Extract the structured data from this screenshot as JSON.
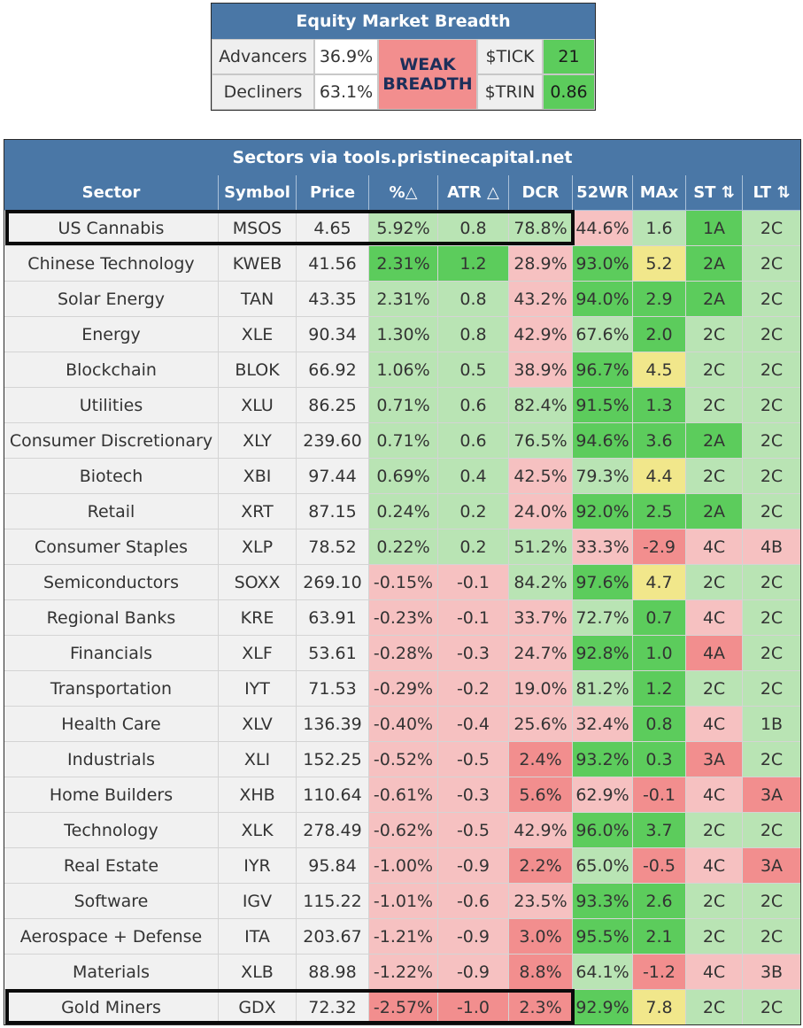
{
  "breadth": {
    "title": "Equity Market Breadth",
    "advancers_label": "Advancers",
    "advancers_value": "36.9%",
    "decliners_label": "Decliners",
    "decliners_value": "63.1%",
    "status_line1": "WEAK",
    "status_line2": "BREADTH",
    "tick_label": "$TICK",
    "tick_value": "21",
    "trin_label": "$TRIN",
    "trin_value": "0.86"
  },
  "sectors": {
    "title": "Sectors via tools.pristinecapital.net",
    "columns": [
      "Sector",
      "Symbol",
      "Price",
      "%△",
      "ATR △",
      "DCR",
      "52WR",
      "MAx",
      "ST ⇅",
      "LT ⇅"
    ],
    "rows": [
      {
        "cells": [
          "US Cannabis",
          "MSOS",
          "4.65",
          "5.92%",
          "0.8",
          "78.8%",
          "44.6%",
          "1.6",
          "1A",
          "2C"
        ],
        "colors": [
          "lab",
          "lab",
          "lab",
          "lg",
          "lg",
          "lg",
          "pk",
          "lg",
          "g",
          "lg"
        ]
      },
      {
        "cells": [
          "Chinese Technology",
          "KWEB",
          "41.56",
          "2.31%",
          "1.2",
          "28.9%",
          "93.0%",
          "5.2",
          "2A",
          "2C"
        ],
        "colors": [
          "lab",
          "lab",
          "lab",
          "g",
          "g",
          "pk",
          "g",
          "y",
          "g",
          "lg"
        ]
      },
      {
        "cells": [
          "Solar Energy",
          "TAN",
          "43.35",
          "2.31%",
          "0.8",
          "43.2%",
          "94.0%",
          "2.9",
          "2A",
          "2C"
        ],
        "colors": [
          "lab",
          "lab",
          "lab",
          "lg",
          "lg",
          "pk",
          "g",
          "g",
          "g",
          "lg"
        ]
      },
      {
        "cells": [
          "Energy",
          "XLE",
          "90.34",
          "1.30%",
          "0.8",
          "42.9%",
          "67.6%",
          "2.0",
          "2C",
          "2C"
        ],
        "colors": [
          "lab",
          "lab",
          "lab",
          "lg",
          "lg",
          "pk",
          "lg",
          "g",
          "lg",
          "lg"
        ]
      },
      {
        "cells": [
          "Blockchain",
          "BLOK",
          "66.92",
          "1.06%",
          "0.5",
          "38.9%",
          "96.7%",
          "4.5",
          "2C",
          "2C"
        ],
        "colors": [
          "lab",
          "lab",
          "lab",
          "lg",
          "lg",
          "pk",
          "g",
          "y",
          "lg",
          "lg"
        ]
      },
      {
        "cells": [
          "Utilities",
          "XLU",
          "86.25",
          "0.71%",
          "0.6",
          "82.4%",
          "91.5%",
          "1.3",
          "2C",
          "2C"
        ],
        "colors": [
          "lab",
          "lab",
          "lab",
          "lg",
          "lg",
          "lg",
          "g",
          "g",
          "lg",
          "lg"
        ]
      },
      {
        "cells": [
          "Consumer Discretionary",
          "XLY",
          "239.60",
          "0.71%",
          "0.6",
          "76.5%",
          "94.6%",
          "3.6",
          "2A",
          "2C"
        ],
        "colors": [
          "lab",
          "lab",
          "lab",
          "lg",
          "lg",
          "lg",
          "g",
          "g",
          "g",
          "lg"
        ]
      },
      {
        "cells": [
          "Biotech",
          "XBI",
          "97.44",
          "0.69%",
          "0.4",
          "42.5%",
          "79.3%",
          "4.4",
          "2C",
          "2C"
        ],
        "colors": [
          "lab",
          "lab",
          "lab",
          "lg",
          "lg",
          "pk",
          "lg",
          "y",
          "lg",
          "lg"
        ]
      },
      {
        "cells": [
          "Retail",
          "XRT",
          "87.15",
          "0.24%",
          "0.2",
          "24.0%",
          "92.0%",
          "2.5",
          "2A",
          "2C"
        ],
        "colors": [
          "lab",
          "lab",
          "lab",
          "lg",
          "lg",
          "pk",
          "g",
          "g",
          "g",
          "lg"
        ]
      },
      {
        "cells": [
          "Consumer Staples",
          "XLP",
          "78.52",
          "0.22%",
          "0.2",
          "51.2%",
          "33.3%",
          "-2.9",
          "4C",
          "4B"
        ],
        "colors": [
          "lab",
          "lab",
          "lab",
          "lg",
          "lg",
          "lg",
          "pk",
          "r",
          "pk",
          "pk"
        ]
      },
      {
        "cells": [
          "Semiconductors",
          "SOXX",
          "269.10",
          "-0.15%",
          "-0.1",
          "84.2%",
          "97.6%",
          "4.7",
          "2C",
          "2C"
        ],
        "colors": [
          "lab",
          "lab",
          "lab",
          "pk",
          "pk",
          "lg",
          "g",
          "y",
          "lg",
          "lg"
        ]
      },
      {
        "cells": [
          "Regional Banks",
          "KRE",
          "63.91",
          "-0.23%",
          "-0.1",
          "33.7%",
          "72.7%",
          "0.7",
          "4C",
          "2C"
        ],
        "colors": [
          "lab",
          "lab",
          "lab",
          "pk",
          "pk",
          "pk",
          "lg",
          "g",
          "pk",
          "lg"
        ]
      },
      {
        "cells": [
          "Financials",
          "XLF",
          "53.61",
          "-0.28%",
          "-0.3",
          "24.7%",
          "92.8%",
          "1.0",
          "4A",
          "2C"
        ],
        "colors": [
          "lab",
          "lab",
          "lab",
          "pk",
          "pk",
          "pk",
          "g",
          "g",
          "r",
          "lg"
        ]
      },
      {
        "cells": [
          "Transportation",
          "IYT",
          "71.53",
          "-0.29%",
          "-0.2",
          "19.0%",
          "81.2%",
          "1.2",
          "2C",
          "2C"
        ],
        "colors": [
          "lab",
          "lab",
          "lab",
          "pk",
          "pk",
          "pk",
          "lg",
          "g",
          "lg",
          "lg"
        ]
      },
      {
        "cells": [
          "Health Care",
          "XLV",
          "136.39",
          "-0.40%",
          "-0.4",
          "25.6%",
          "32.4%",
          "0.8",
          "4C",
          "1B"
        ],
        "colors": [
          "lab",
          "lab",
          "lab",
          "pk",
          "pk",
          "pk",
          "pk",
          "g",
          "pk",
          "lg"
        ]
      },
      {
        "cells": [
          "Industrials",
          "XLI",
          "152.25",
          "-0.52%",
          "-0.5",
          "2.4%",
          "93.2%",
          "0.3",
          "3A",
          "2C"
        ],
        "colors": [
          "lab",
          "lab",
          "lab",
          "pk",
          "pk",
          "r",
          "g",
          "g",
          "r",
          "lg"
        ]
      },
      {
        "cells": [
          "Home Builders",
          "XHB",
          "110.64",
          "-0.61%",
          "-0.3",
          "5.6%",
          "62.9%",
          "-0.1",
          "4C",
          "3A"
        ],
        "colors": [
          "lab",
          "lab",
          "lab",
          "pk",
          "pk",
          "r",
          "pk",
          "r",
          "pk",
          "r"
        ]
      },
      {
        "cells": [
          "Technology",
          "XLK",
          "278.49",
          "-0.62%",
          "-0.5",
          "42.9%",
          "96.0%",
          "3.7",
          "2C",
          "2C"
        ],
        "colors": [
          "lab",
          "lab",
          "lab",
          "pk",
          "pk",
          "pk",
          "g",
          "g",
          "lg",
          "lg"
        ]
      },
      {
        "cells": [
          "Real Estate",
          "IYR",
          "95.84",
          "-1.00%",
          "-0.9",
          "2.2%",
          "65.0%",
          "-0.5",
          "4C",
          "3A"
        ],
        "colors": [
          "lab",
          "lab",
          "lab",
          "pk",
          "pk",
          "r",
          "lg",
          "r",
          "pk",
          "r"
        ]
      },
      {
        "cells": [
          "Software",
          "IGV",
          "115.22",
          "-1.01%",
          "-0.6",
          "23.5%",
          "93.3%",
          "2.6",
          "2C",
          "2C"
        ],
        "colors": [
          "lab",
          "lab",
          "lab",
          "pk",
          "pk",
          "pk",
          "g",
          "g",
          "lg",
          "lg"
        ]
      },
      {
        "cells": [
          "Aerospace + Defense",
          "ITA",
          "203.67",
          "-1.21%",
          "-0.9",
          "3.0%",
          "95.5%",
          "2.1",
          "2C",
          "2C"
        ],
        "colors": [
          "lab",
          "lab",
          "lab",
          "pk",
          "pk",
          "r",
          "g",
          "g",
          "lg",
          "lg"
        ]
      },
      {
        "cells": [
          "Materials",
          "XLB",
          "88.98",
          "-1.22%",
          "-0.9",
          "8.8%",
          "64.1%",
          "-1.2",
          "4C",
          "3B"
        ],
        "colors": [
          "lab",
          "lab",
          "lab",
          "pk",
          "pk",
          "r",
          "lg",
          "r",
          "pk",
          "pk"
        ]
      },
      {
        "cells": [
          "Gold Miners",
          "GDX",
          "72.32",
          "-2.57%",
          "-1.0",
          "2.3%",
          "92.9%",
          "7.8",
          "2C",
          "2C"
        ],
        "colors": [
          "lab",
          "lab",
          "lab",
          "r",
          "r",
          "r",
          "g",
          "y",
          "lg",
          "lg"
        ]
      }
    ],
    "highlighted_rows": [
      "US Cannabis",
      "Gold Miners"
    ]
  },
  "palette": {
    "header_blue": "#4a77a6",
    "lab": "#f1f1f1",
    "g": "#5ccc5c",
    "lg": "#b9e4b4",
    "pk": "#f6c1c1",
    "r": "#f28e8e",
    "y": "#f1e78b"
  }
}
